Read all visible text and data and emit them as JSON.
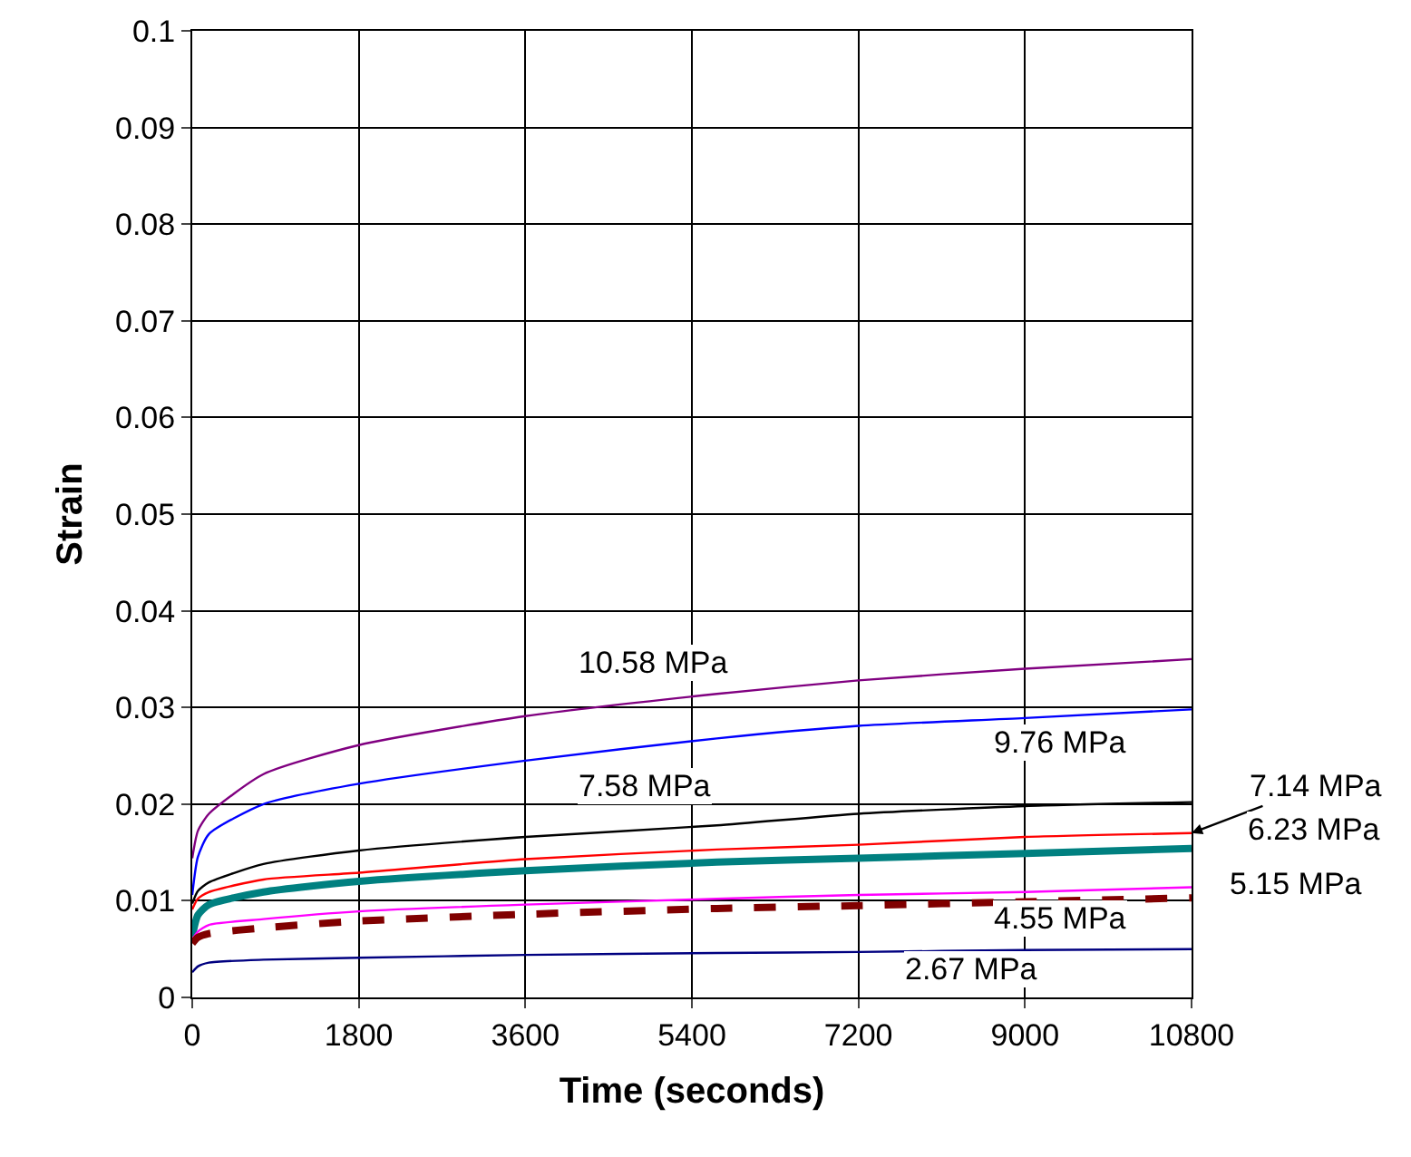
{
  "chart_data": {
    "type": "line",
    "xlabel": "Time (seconds)",
    "ylabel": "Strain",
    "x": [
      0,
      60,
      180,
      770,
      1800,
      3600,
      5670,
      7200,
      9000,
      10800
    ],
    "series": [
      {
        "name": "10.58 MPa",
        "color": "#800080",
        "values": [
          0.0144,
          0.0172,
          0.019,
          0.0231,
          0.0261,
          0.0291,
          0.0314,
          0.0328,
          0.034,
          0.035
        ]
      },
      {
        "name": "9.76 MPa",
        "color": "#0000ff",
        "values": [
          0.0106,
          0.0145,
          0.0169,
          0.02,
          0.0221,
          0.0245,
          0.0268,
          0.0281,
          0.0289,
          0.0298
        ]
      },
      {
        "name": "7.58 MPa",
        "color": "#000000",
        "values": [
          0.0097,
          0.011,
          0.0119,
          0.0138,
          0.0152,
          0.0166,
          0.0178,
          0.019,
          0.0198,
          0.0202
        ]
      },
      {
        "name": "7.14 MPa",
        "color": "#ff0000",
        "values": [
          0.0091,
          0.0102,
          0.0109,
          0.0122,
          0.0129,
          0.0143,
          0.0153,
          0.0158,
          0.0166,
          0.017
        ]
      },
      {
        "name": "6.23 MPa",
        "color": "#008080",
        "values": [
          0.0063,
          0.0085,
          0.0096,
          0.0109,
          0.012,
          0.0131,
          0.014,
          0.0144,
          0.0149,
          0.0154
        ]
      },
      {
        "name": "5.15 MPa",
        "color": "#ff00ff",
        "values": [
          0.006,
          0.0068,
          0.0075,
          0.0081,
          0.0089,
          0.0096,
          0.0102,
          0.0106,
          0.0109,
          0.0114
        ]
      },
      {
        "name": "4.55 MPa",
        "color": "#800000",
        "line_style": "dashed",
        "values": [
          0.0056,
          0.0062,
          0.0066,
          0.0072,
          0.0079,
          0.0086,
          0.0092,
          0.0095,
          0.0099,
          0.0103
        ]
      },
      {
        "name": "2.67 MPa",
        "color": "#000080",
        "values": [
          0.0026,
          0.0032,
          0.0036,
          0.0039,
          0.0041,
          0.0044,
          0.0046,
          0.0047,
          0.0049,
          0.005
        ]
      }
    ],
    "xlim": [
      0,
      10800
    ],
    "xticks": [
      0,
      1800,
      3600,
      5400,
      7200,
      9000,
      10800
    ],
    "ylim": [
      0,
      0.1
    ],
    "yticks": [
      0,
      0.01,
      0.02,
      0.03,
      0.04,
      0.05,
      0.06,
      0.07,
      0.08,
      0.09,
      0.1
    ],
    "grid": true,
    "legend": false,
    "marker": "none",
    "line_style": "solid"
  }
}
